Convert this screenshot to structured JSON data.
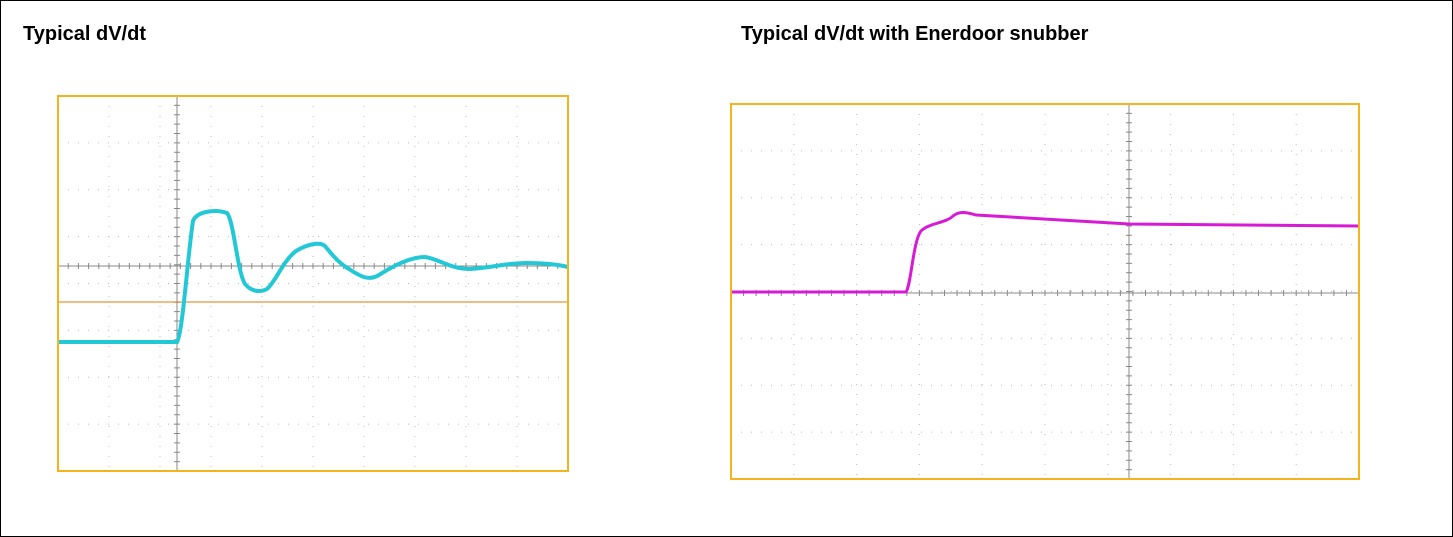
{
  "left": {
    "title": "Typical dV/dt"
  },
  "right": {
    "title": "Typical dV/dt with Enerdoor snubber"
  }
}
